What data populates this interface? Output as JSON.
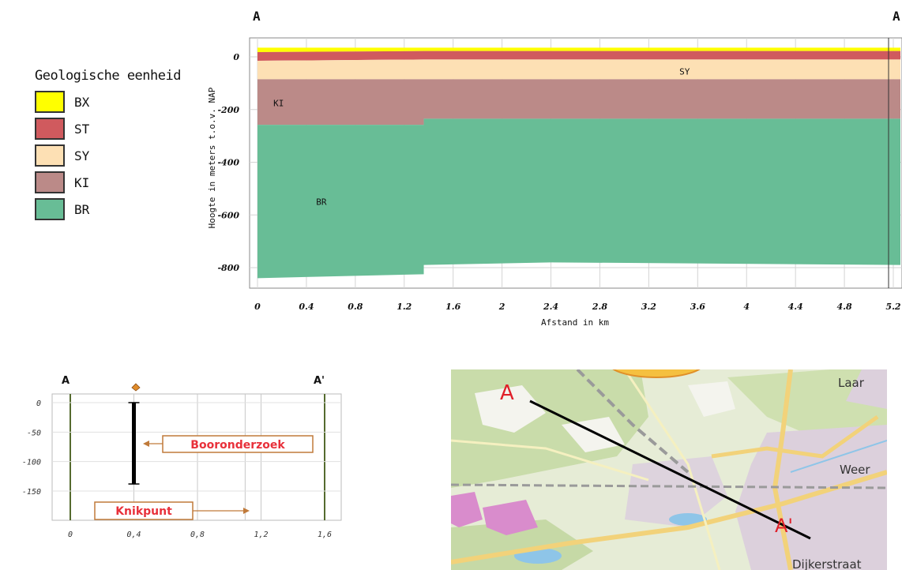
{
  "legend": {
    "title": "Geologische eenheid",
    "items": [
      {
        "label": "BX",
        "color": "#ffff00"
      },
      {
        "label": "ST",
        "color": "#d05a5e"
      },
      {
        "label": "SY",
        "color": "#fde0b4"
      },
      {
        "label": "KI",
        "color": "#bb8a88"
      },
      {
        "label": "BR",
        "color": "#68bd96"
      }
    ]
  },
  "chart_data": [
    {
      "type": "area",
      "marker_left": "A",
      "marker_right": "A",
      "xlabel": "Afstand in km",
      "ylabel": "Hoogte in meters t.o.v. NAP",
      "xlim": [
        0,
        5.2
      ],
      "ylim": [
        -900,
        40
      ],
      "x_ticks": [
        "0",
        "0.4",
        "0.8",
        "1.2",
        "1.6",
        "2",
        "2.4",
        "2.8",
        "3.2",
        "3.6",
        "4",
        "4.4",
        "4.8",
        "5.2"
      ],
      "y_ticks": [
        "0",
        "-200",
        "-400",
        "-600",
        "-800"
      ],
      "grid": true,
      "layers": [
        {
          "name": "BX",
          "color": "#ffff00",
          "x": [
            0,
            1.36,
            1.36,
            5.2
          ],
          "top": [
            35,
            35,
            35,
            35
          ],
          "bottom": [
            18,
            22,
            22,
            22
          ]
        },
        {
          "name": "ST",
          "color": "#d05a5e",
          "x": [
            0,
            1.36,
            1.36,
            5.2
          ],
          "top": [
            18,
            22,
            22,
            22
          ],
          "bottom": [
            -15,
            -10,
            -10,
            -10
          ]
        },
        {
          "name": "SY",
          "color": "#fde0b4",
          "x": [
            0,
            1.36,
            1.36,
            5.2
          ],
          "top": [
            -15,
            -10,
            -10,
            -10
          ],
          "bottom": [
            -85,
            -85,
            -85,
            -85
          ]
        },
        {
          "name": "KI",
          "color": "#bb8a88",
          "x": [
            0,
            1.36,
            1.36,
            5.2
          ],
          "top": [
            -85,
            -85,
            -85,
            -85
          ],
          "bottom": [
            -258,
            -258,
            -235,
            -235
          ]
        },
        {
          "name": "BR",
          "color": "#68bd96",
          "x": [
            0,
            1.36,
            1.36,
            2.4,
            5.2
          ],
          "top": [
            -258,
            -258,
            -235,
            -235,
            -235
          ],
          "bottom": [
            -840,
            -825,
            -790,
            -780,
            -790
          ]
        }
      ],
      "annotations": [
        {
          "text": "SY",
          "x": 3.45,
          "y": -55
        },
        {
          "text": "KI",
          "x": 0.13,
          "y": -175
        },
        {
          "text": "BR",
          "x": 0.48,
          "y": -550
        }
      ]
    },
    {
      "type": "line",
      "marker_left": "A",
      "marker_right": "A'",
      "xlim": [
        -0.05,
        1.65
      ],
      "ylim": [
        -195,
        8
      ],
      "x_ticks": [
        "0",
        "0,4",
        "0,8",
        "1,2",
        "1,6"
      ],
      "x_tick_values": [
        0,
        0.4,
        0.8,
        1.2,
        1.6
      ],
      "y_ticks": [
        "0",
        "-50",
        "-100",
        "-150"
      ],
      "y_tick_values": [
        0,
        -50,
        -100,
        -150
      ],
      "borehole": {
        "x": 0.4,
        "top": 0,
        "bottom": -138
      },
      "knikpunt_x": 1.1,
      "annotations": [
        {
          "text": "Booronderzoek"
        },
        {
          "text": "Knikpunt"
        }
      ]
    }
  ],
  "map": {
    "labels": [
      "Laar",
      "Weer",
      "Dijkerstraat"
    ],
    "point_a": "A",
    "point_a_prime": "A'"
  }
}
